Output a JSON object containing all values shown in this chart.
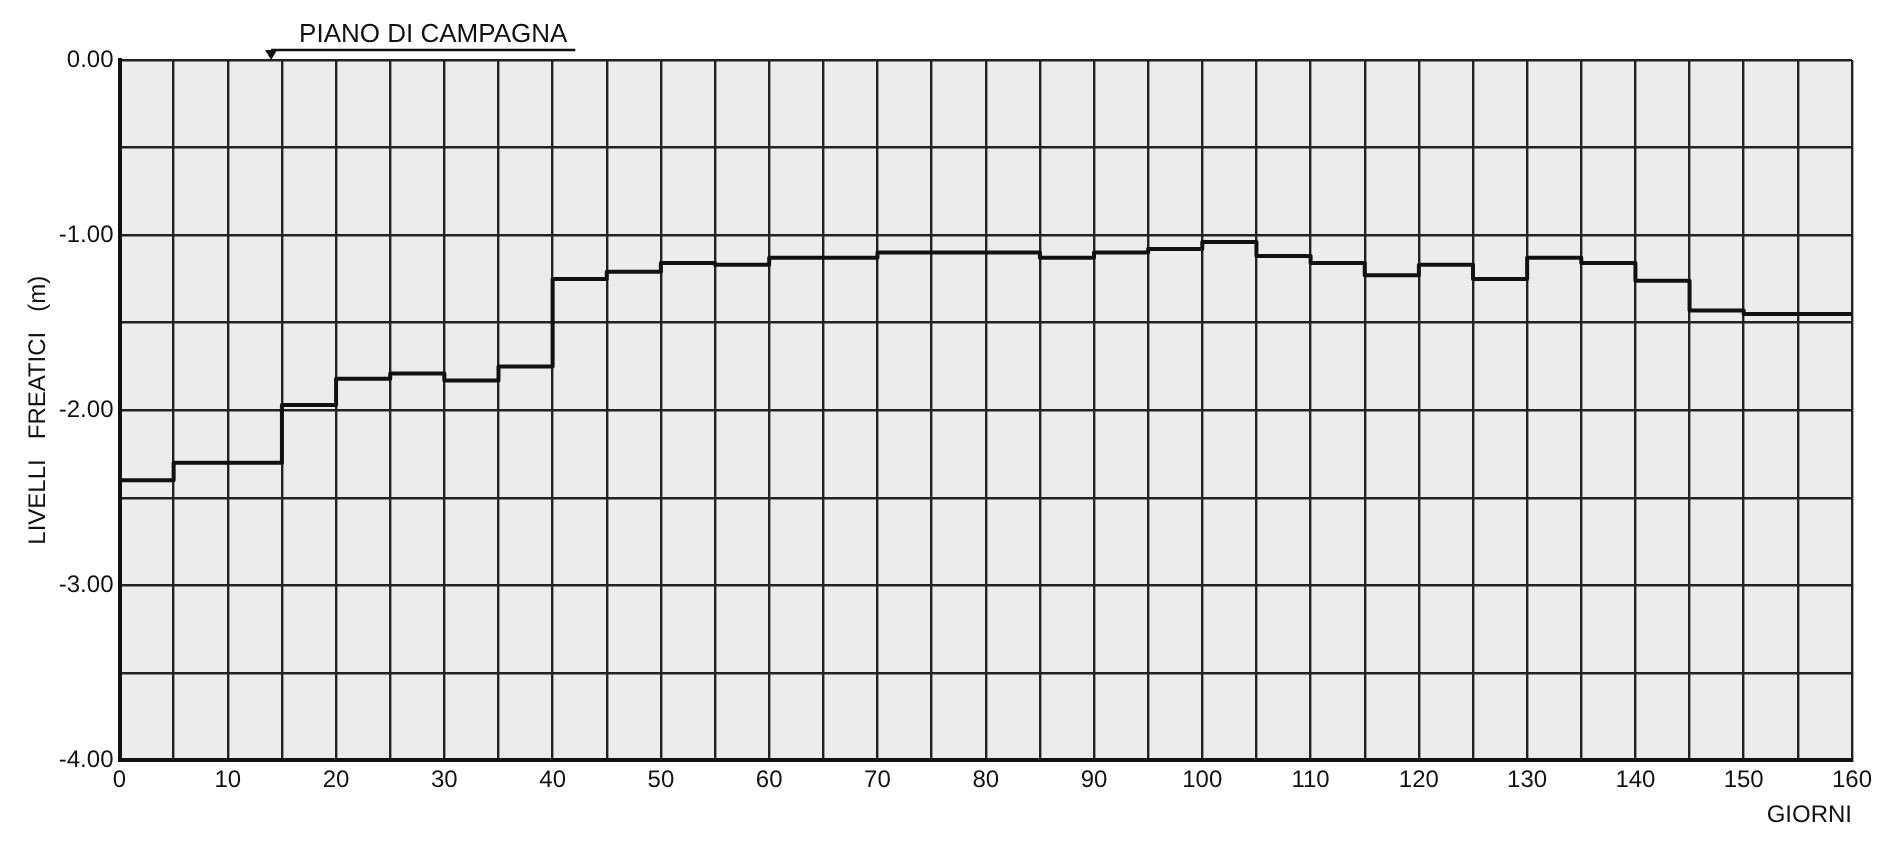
{
  "chart_data": {
    "type": "step",
    "xlabel": "GIORNI",
    "ylabel": "LIVELLI   FREATICI   (m)",
    "annotations": [
      "PIANO DI CAMPAGNA"
    ],
    "x": [
      0,
      5,
      10,
      15,
      20,
      25,
      30,
      35,
      40,
      45,
      50,
      55,
      60,
      65,
      70,
      75,
      80,
      85,
      90,
      95,
      100,
      105,
      110,
      115,
      120,
      125,
      130,
      135,
      140,
      145,
      150,
      155,
      160
    ],
    "series": [
      {
        "color": "#111111",
        "values": [
          -2.4,
          -2.3,
          -2.3,
          -1.97,
          -1.82,
          -1.79,
          -1.83,
          -1.75,
          -1.25,
          -1.21,
          -1.16,
          -1.17,
          -1.13,
          -1.13,
          -1.1,
          -1.1,
          -1.1,
          -1.13,
          -1.1,
          -1.08,
          -1.04,
          -1.12,
          -1.16,
          -1.23,
          -1.17,
          -1.25,
          -1.13,
          -1.16,
          -1.26,
          -1.43,
          -1.45,
          -1.45,
          -1.45
        ]
      }
    ],
    "xlim": [
      0,
      160
    ],
    "xticks": [
      0,
      {
        "value": 5,
        "label": null
      },
      10,
      {
        "value": 15,
        "label": null
      },
      20,
      {
        "value": 25,
        "label": null
      },
      30,
      {
        "value": 35,
        "label": null
      },
      40,
      {
        "value": 45,
        "label": null
      },
      50,
      {
        "value": 55,
        "label": null
      },
      60,
      {
        "value": 65,
        "label": null
      },
      70,
      {
        "value": 75,
        "label": null
      },
      80,
      {
        "value": 85,
        "label": null
      },
      90,
      {
        "value": 95,
        "label": null
      },
      100,
      {
        "value": 105,
        "label": null
      },
      110,
      {
        "value": 115,
        "label": null
      },
      120,
      {
        "value": 125,
        "label": null
      },
      130,
      {
        "value": 135,
        "label": null
      },
      140,
      {
        "value": 145,
        "label": null
      },
      150,
      {
        "value": 155,
        "label": null
      },
      160
    ],
    "ylim": [
      -4,
      0
    ],
    "yticks": [
      {
        "value": -4,
        "label": "-4.00"
      },
      {
        "value": -3.5,
        "label": null
      },
      {
        "value": -3,
        "label": "-3.00"
      },
      {
        "value": -2.5,
        "label": null
      },
      {
        "value": -2,
        "label": "-2.00"
      },
      {
        "value": -1.5,
        "label": null
      },
      {
        "value": -1,
        "label": "-1.00"
      },
      {
        "value": -0.5,
        "label": null
      },
      {
        "value": 0,
        "label": "0.00"
      }
    ],
    "grid": true,
    "legend": false,
    "marker": "none",
    "line_style": "solid"
  }
}
